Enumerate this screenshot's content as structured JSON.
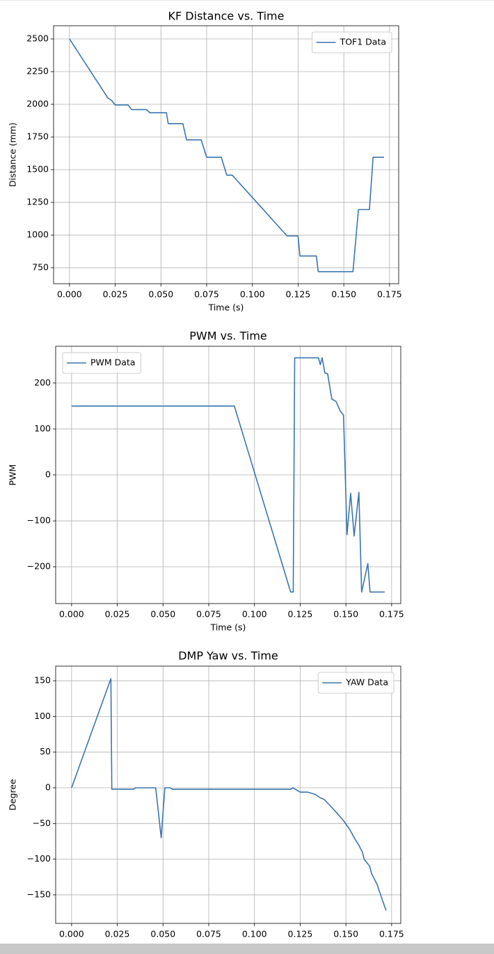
{
  "chart_data": [
    {
      "type": "line",
      "title": "KF Distance vs. Time",
      "xlabel": "Time (s)",
      "ylabel": "Distance (mm)",
      "x": [
        0,
        0.021,
        0.023,
        0.025,
        0.032,
        0.034,
        0.042,
        0.044,
        0.053,
        0.054,
        0.062,
        0.064,
        0.072,
        0.075,
        0.083,
        0.086,
        0.089,
        0.119,
        0.125,
        0.126,
        0.135,
        0.136,
        0.155,
        0.158,
        0.164,
        0.166,
        0.172
      ],
      "series": [
        {
          "name": "TOF1 Data",
          "color": "#3b75af",
          "values": [
            2500,
            2048,
            2030,
            1995,
            1995,
            1960,
            1960,
            1935,
            1935,
            1852,
            1852,
            1728,
            1728,
            1595,
            1595,
            1458,
            1458,
            993,
            993,
            840,
            840,
            720,
            720,
            1195,
            1195,
            1595,
            1595
          ]
        }
      ],
      "xlim": [
        -0.0087,
        0.18
      ],
      "ylim": [
        628,
        2601
      ],
      "xticks": [
        {
          "value": 0,
          "label": "0.000"
        },
        {
          "value": 0.025,
          "label": "0.025"
        },
        {
          "value": 0.05,
          "label": "0.050"
        },
        {
          "value": 0.075,
          "label": "0.075"
        },
        {
          "value": 0.1,
          "label": "0.100"
        },
        {
          "value": 0.125,
          "label": "0.125"
        },
        {
          "value": 0.15,
          "label": "0.150"
        },
        {
          "value": 0.175,
          "label": "0.175"
        }
      ],
      "yticks": [
        750,
        1000,
        1250,
        1500,
        1750,
        2000,
        2250,
        2500
      ],
      "grid": true,
      "legend": "upper-right"
    },
    {
      "type": "line",
      "title": "PWM vs. Time",
      "xlabel": "Time (s)",
      "ylabel": "PWM",
      "x": [
        0,
        0.089,
        0.1198,
        0.1212,
        0.122,
        0.135,
        0.136,
        0.137,
        0.1385,
        0.14,
        0.1423,
        0.1446,
        0.1468,
        0.1487,
        0.1506,
        0.1526,
        0.1545,
        0.1571,
        0.1586,
        0.162,
        0.1632,
        0.1712
      ],
      "series": [
        {
          "name": "PWM Data",
          "color": "#3b75af",
          "values": [
            150,
            150,
            -255,
            -255,
            255,
            255,
            240,
            255,
            222,
            220,
            165,
            160,
            140,
            130,
            -130,
            -40,
            -133,
            -38,
            -255,
            -193,
            -255,
            -255
          ]
        }
      ],
      "xlim": [
        -0.0087,
        0.18
      ],
      "ylim": [
        -280,
        280
      ],
      "xticks": [
        {
          "value": 0,
          "label": "0.000"
        },
        {
          "value": 0.025,
          "label": "0.025"
        },
        {
          "value": 0.05,
          "label": "0.050"
        },
        {
          "value": 0.075,
          "label": "0.075"
        },
        {
          "value": 0.1,
          "label": "0.100"
        },
        {
          "value": 0.125,
          "label": "0.125"
        },
        {
          "value": 0.15,
          "label": "0.150"
        },
        {
          "value": 0.175,
          "label": "0.175"
        }
      ],
      "yticks": [
        {
          "value": -200,
          "label": "−200"
        },
        {
          "value": -100,
          "label": "−100"
        },
        0,
        100,
        200
      ],
      "grid": true,
      "legend": "upper-left"
    },
    {
      "type": "line",
      "title": "DMP Yaw vs. Time",
      "ylabel": "Degree",
      "x": [
        0,
        0.0215,
        0.022,
        0.034,
        0.035,
        0.046,
        0.049,
        0.051,
        0.054,
        0.055,
        0.12,
        0.121,
        0.123,
        0.125,
        0.129,
        0.133,
        0.136,
        0.138,
        0.141,
        0.145,
        0.149,
        0.152,
        0.155,
        0.157,
        0.159,
        0.16,
        0.163,
        0.164,
        0.167,
        0.169,
        0.171,
        0.172
      ],
      "series": [
        {
          "name": "YAW Data",
          "color": "#3b75af",
          "values": [
            0,
            153,
            -2,
            -2,
            0,
            0,
            -70,
            0,
            0,
            -2,
            -2,
            0,
            -3,
            -6,
            -6,
            -9,
            -14,
            -16,
            -24,
            -35,
            -47,
            -58,
            -72,
            -80,
            -90,
            -100,
            -110,
            -120,
            -135,
            -150,
            -165,
            -172
          ]
        }
      ],
      "xlim": [
        -0.0087,
        0.18
      ],
      "ylim": [
        -190,
        170.5
      ],
      "xticks": [
        {
          "value": 0,
          "label": "0.000"
        },
        {
          "value": 0.025,
          "label": "0.025"
        },
        {
          "value": 0.05,
          "label": "0.050"
        },
        {
          "value": 0.075,
          "label": "0.075"
        },
        {
          "value": 0.1,
          "label": "0.100"
        },
        {
          "value": 0.125,
          "label": "0.125"
        },
        {
          "value": 0.15,
          "label": "0.150"
        },
        {
          "value": 0.175,
          "label": "0.175"
        }
      ],
      "yticks": [
        {
          "value": -150,
          "label": "−150"
        },
        {
          "value": -100,
          "label": "−100"
        },
        {
          "value": -50,
          "label": "−50"
        },
        0,
        50,
        100,
        150
      ],
      "grid": true,
      "legend": "upper-right"
    }
  ]
}
